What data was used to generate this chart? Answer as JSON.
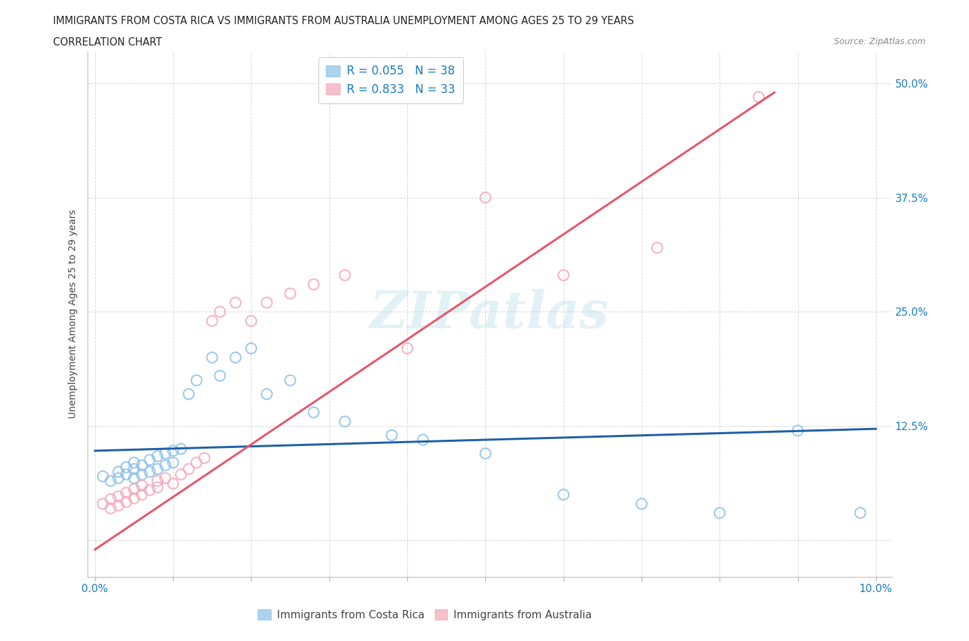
{
  "title_line1": "IMMIGRANTS FROM COSTA RICA VS IMMIGRANTS FROM AUSTRALIA UNEMPLOYMENT AMONG AGES 25 TO 29 YEARS",
  "title_line2": "CORRELATION CHART",
  "source": "Source: ZipAtlas.com",
  "ylabel": "Unemployment Among Ages 25 to 29 years",
  "xlim": [
    -0.001,
    0.102
  ],
  "ylim": [
    -0.04,
    0.535
  ],
  "yticks": [
    0.0,
    0.125,
    0.25,
    0.375,
    0.5
  ],
  "ytick_labels": [
    "",
    "12.5%",
    "25.0%",
    "37.5%",
    "50.0%"
  ],
  "xtick_positions": [
    0.0,
    0.01,
    0.02,
    0.03,
    0.04,
    0.05,
    0.06,
    0.07,
    0.08,
    0.09,
    0.1
  ],
  "xtick_labels": [
    "0.0%",
    "",
    "",
    "",
    "",
    "",
    "",
    "",
    "",
    "",
    "10.0%"
  ],
  "legend_R1": "R = 0.055",
  "legend_N1": "N = 38",
  "legend_R2": "R = 0.833",
  "legend_N2": "N = 33",
  "color_blue": "#8bbfe8",
  "color_pink": "#f4a6b8",
  "color_blue_line": "#1e5fa8",
  "color_pink_line": "#e8546a",
  "color_tick_text": "#1a7abf",
  "watermark": "ZIPatlas",
  "blue_scatter_x": [
    0.001,
    0.002,
    0.003,
    0.003,
    0.004,
    0.004,
    0.005,
    0.005,
    0.005,
    0.006,
    0.006,
    0.007,
    0.007,
    0.008,
    0.008,
    0.009,
    0.009,
    0.01,
    0.01,
    0.011,
    0.012,
    0.013,
    0.015,
    0.016,
    0.018,
    0.02,
    0.022,
    0.025,
    0.028,
    0.032,
    0.038,
    0.042,
    0.05,
    0.06,
    0.07,
    0.08,
    0.09,
    0.098
  ],
  "blue_scatter_y": [
    0.07,
    0.065,
    0.075,
    0.068,
    0.08,
    0.072,
    0.085,
    0.078,
    0.068,
    0.082,
    0.072,
    0.088,
    0.075,
    0.092,
    0.078,
    0.095,
    0.082,
    0.098,
    0.085,
    0.1,
    0.16,
    0.175,
    0.2,
    0.18,
    0.2,
    0.21,
    0.16,
    0.175,
    0.14,
    0.13,
    0.115,
    0.11,
    0.095,
    0.05,
    0.04,
    0.03,
    0.12,
    0.03
  ],
  "pink_scatter_x": [
    0.001,
    0.002,
    0.002,
    0.003,
    0.003,
    0.004,
    0.004,
    0.005,
    0.005,
    0.006,
    0.006,
    0.007,
    0.008,
    0.008,
    0.009,
    0.01,
    0.011,
    0.012,
    0.013,
    0.014,
    0.015,
    0.016,
    0.018,
    0.02,
    0.022,
    0.025,
    0.028,
    0.032,
    0.04,
    0.05,
    0.06,
    0.072,
    0.085
  ],
  "pink_scatter_y": [
    0.04,
    0.035,
    0.045,
    0.038,
    0.048,
    0.042,
    0.052,
    0.046,
    0.056,
    0.05,
    0.06,
    0.055,
    0.065,
    0.058,
    0.068,
    0.062,
    0.072,
    0.078,
    0.085,
    0.09,
    0.24,
    0.25,
    0.26,
    0.24,
    0.26,
    0.27,
    0.28,
    0.29,
    0.21,
    0.375,
    0.29,
    0.32,
    0.485
  ],
  "blue_line_x": [
    0.0,
    0.1
  ],
  "blue_line_y": [
    0.098,
    0.122
  ],
  "pink_line_x": [
    0.0,
    0.087
  ],
  "pink_line_y": [
    -0.01,
    0.49
  ],
  "background_color": "#ffffff",
  "grid_color": "#cccccc"
}
